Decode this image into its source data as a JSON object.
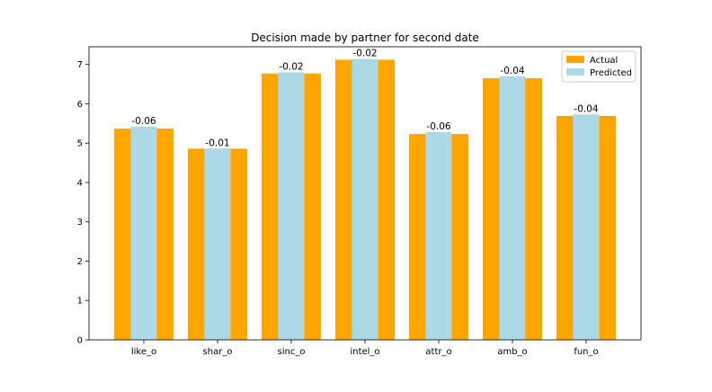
{
  "chart_data": {
    "type": "bar",
    "title": "Decision made by partner for second date",
    "xlabel": "",
    "ylabel": "",
    "categories": [
      "like_o",
      "shar_o",
      "sinc_o",
      "intel_o",
      "attr_o",
      "amb_o",
      "fun_o"
    ],
    "ylim": [
      0,
      7.45
    ],
    "yticks": [
      "0",
      "1",
      "2",
      "3",
      "4",
      "5",
      "6",
      "7"
    ],
    "grid": false,
    "legend_position": "top-right",
    "series": [
      {
        "name": "Actual",
        "color": "#ffa500",
        "values": [
          5.37,
          4.86,
          6.77,
          7.12,
          5.23,
          6.65,
          5.69
        ]
      },
      {
        "name": "Predicted",
        "color": "#add8e6",
        "values": [
          5.42,
          4.86,
          6.8,
          7.14,
          5.28,
          6.7,
          5.73
        ]
      }
    ],
    "annotations": [
      "-0.06",
      "-0.01",
      "-0.02",
      "-0.02",
      "-0.06",
      "-0.04",
      "-0.04"
    ]
  }
}
